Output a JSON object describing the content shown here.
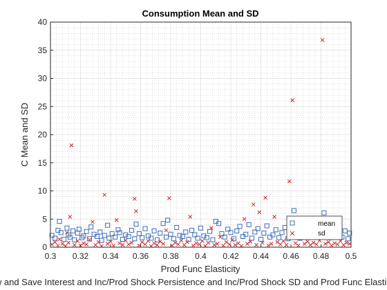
{
  "chart_data": {
    "type": "scatter",
    "title": "Consumption Mean and SD",
    "xlabel": "Prod Func Elasticity",
    "ylabel": "C Mean and SD",
    "bottom_caption": "Borrow and Save Interest and Inc/Prod Shock Persistence and Inc/Prod Shock SD and Prod Func Elasticity",
    "xlim": [
      0.3,
      0.5
    ],
    "ylim": [
      0,
      40
    ],
    "x_ticks": [
      "0.3",
      "0.32",
      "0.34",
      "0.36",
      "0.38",
      "0.4",
      "0.42",
      "0.44",
      "0.46",
      "0.48",
      "0.5"
    ],
    "y_ticks": [
      "0",
      "5",
      "10",
      "15",
      "20",
      "25",
      "30",
      "35",
      "40"
    ],
    "grid": true,
    "minor_grid": true,
    "legend_position": "bottom-right",
    "series": [
      {
        "name": "mean",
        "marker": "square",
        "color": "#3d6db5",
        "points": [
          [
            0.301,
            2.1
          ],
          [
            0.303,
            1.6
          ],
          [
            0.305,
            3.0
          ],
          [
            0.306,
            4.6
          ],
          [
            0.307,
            2.6
          ],
          [
            0.309,
            1.4
          ],
          [
            0.311,
            3.4
          ],
          [
            0.312,
            2.2
          ],
          [
            0.313,
            1.8
          ],
          [
            0.315,
            2.9
          ],
          [
            0.316,
            1.3
          ],
          [
            0.318,
            2.5
          ],
          [
            0.319,
            3.2
          ],
          [
            0.321,
            1.7
          ],
          [
            0.322,
            2.0
          ],
          [
            0.324,
            2.8
          ],
          [
            0.326,
            1.5
          ],
          [
            0.327,
            3.6
          ],
          [
            0.329,
            2.3
          ],
          [
            0.331,
            1.9
          ],
          [
            0.333,
            2.7
          ],
          [
            0.334,
            1.2
          ],
          [
            0.336,
            2.1
          ],
          [
            0.338,
            3.9
          ],
          [
            0.339,
            1.6
          ],
          [
            0.341,
            2.4
          ],
          [
            0.343,
            1.8
          ],
          [
            0.345,
            3.1
          ],
          [
            0.346,
            2.6
          ],
          [
            0.348,
            1.4
          ],
          [
            0.35,
            2.2
          ],
          [
            0.352,
            1.9
          ],
          [
            0.354,
            3.0
          ],
          [
            0.356,
            1.5
          ],
          [
            0.357,
            4.1
          ],
          [
            0.359,
            2.4
          ],
          [
            0.361,
            1.7
          ],
          [
            0.363,
            3.3
          ],
          [
            0.365,
            2.0
          ],
          [
            0.367,
            1.6
          ],
          [
            0.369,
            2.9
          ],
          [
            0.371,
            1.3
          ],
          [
            0.373,
            2.5
          ],
          [
            0.375,
            4.2
          ],
          [
            0.377,
            1.8
          ],
          [
            0.378,
            4.8
          ],
          [
            0.38,
            2.3
          ],
          [
            0.382,
            1.5
          ],
          [
            0.384,
            3.5
          ],
          [
            0.386,
            2.1
          ],
          [
            0.388,
            1.9
          ],
          [
            0.39,
            2.7
          ],
          [
            0.392,
            1.4
          ],
          [
            0.394,
            3.0
          ],
          [
            0.396,
            2.2
          ],
          [
            0.398,
            1.6
          ],
          [
            0.4,
            3.4
          ],
          [
            0.402,
            2.0
          ],
          [
            0.404,
            1.7
          ],
          [
            0.406,
            2.8
          ],
          [
            0.408,
            1.3
          ],
          [
            0.41,
            4.6
          ],
          [
            0.412,
            4.2
          ],
          [
            0.414,
            2.4
          ],
          [
            0.416,
            1.8
          ],
          [
            0.418,
            3.2
          ],
          [
            0.42,
            2.6
          ],
          [
            0.422,
            1.5
          ],
          [
            0.424,
            2.9
          ],
          [
            0.426,
            3.7
          ],
          [
            0.428,
            1.9
          ],
          [
            0.43,
            2.3
          ],
          [
            0.432,
            4.0
          ],
          [
            0.434,
            1.6
          ],
          [
            0.436,
            2.7
          ],
          [
            0.438,
            3.3
          ],
          [
            0.44,
            1.4
          ],
          [
            0.442,
            2.5
          ],
          [
            0.444,
            3.8
          ],
          [
            0.446,
            1.8
          ],
          [
            0.448,
            2.2
          ],
          [
            0.45,
            3.1
          ],
          [
            0.452,
            1.7
          ],
          [
            0.454,
            2.6
          ],
          [
            0.456,
            3.5
          ],
          [
            0.458,
            1.5
          ],
          [
            0.46,
            4.4
          ],
          [
            0.462,
            6.5
          ],
          [
            0.464,
            2.9
          ],
          [
            0.466,
            1.6
          ],
          [
            0.468,
            3.6
          ],
          [
            0.47,
            2.0
          ],
          [
            0.472,
            4.1
          ],
          [
            0.474,
            1.9
          ],
          [
            0.476,
            3.0
          ],
          [
            0.478,
            2.4
          ],
          [
            0.48,
            4.5
          ],
          [
            0.482,
            6.1
          ],
          [
            0.484,
            2.8
          ],
          [
            0.486,
            1.7
          ],
          [
            0.488,
            3.3
          ],
          [
            0.49,
            2.2
          ],
          [
            0.492,
            4.0
          ],
          [
            0.494,
            1.8
          ],
          [
            0.496,
            2.9
          ],
          [
            0.498,
            1.5
          ],
          [
            0.499,
            2.5
          ]
        ]
      },
      {
        "name": "sd",
        "marker": "x",
        "color": "#cc2a2a",
        "points": [
          [
            0.301,
            0.5
          ],
          [
            0.303,
            0.9
          ],
          [
            0.305,
            0.3
          ],
          [
            0.306,
            1.4
          ],
          [
            0.308,
            0.6
          ],
          [
            0.31,
            0.2
          ],
          [
            0.311,
            2.6
          ],
          [
            0.312,
            0.8
          ],
          [
            0.313,
            5.4
          ],
          [
            0.314,
            18.1
          ],
          [
            0.316,
            0.4
          ],
          [
            0.318,
            1.1
          ],
          [
            0.32,
            0.3
          ],
          [
            0.322,
            0.7
          ],
          [
            0.324,
            0.5
          ],
          [
            0.326,
            1.3
          ],
          [
            0.328,
            4.5
          ],
          [
            0.33,
            0.4
          ],
          [
            0.332,
            0.9
          ],
          [
            0.334,
            0.2
          ],
          [
            0.336,
            9.3
          ],
          [
            0.338,
            0.6
          ],
          [
            0.34,
            1.0
          ],
          [
            0.342,
            0.3
          ],
          [
            0.344,
            4.8
          ],
          [
            0.346,
            0.7
          ],
          [
            0.348,
            0.4
          ],
          [
            0.35,
            1.2
          ],
          [
            0.352,
            0.5
          ],
          [
            0.354,
            0.8
          ],
          [
            0.356,
            8.6
          ],
          [
            0.357,
            6.4
          ],
          [
            0.359,
            0.3
          ],
          [
            0.361,
            0.9
          ],
          [
            0.363,
            0.5
          ],
          [
            0.365,
            1.1
          ],
          [
            0.367,
            0.2
          ],
          [
            0.369,
            0.7
          ],
          [
            0.371,
            0.4
          ],
          [
            0.373,
            1.0
          ],
          [
            0.375,
            0.6
          ],
          [
            0.377,
            3.0
          ],
          [
            0.379,
            8.7
          ],
          [
            0.381,
            0.3
          ],
          [
            0.383,
            0.8
          ],
          [
            0.385,
            0.5
          ],
          [
            0.387,
            1.2
          ],
          [
            0.389,
            0.4
          ],
          [
            0.391,
            0.9
          ],
          [
            0.393,
            5.4
          ],
          [
            0.395,
            0.3
          ],
          [
            0.397,
            0.7
          ],
          [
            0.399,
            0.5
          ],
          [
            0.401,
            1.1
          ],
          [
            0.403,
            0.2
          ],
          [
            0.405,
            0.8
          ],
          [
            0.407,
            3.4
          ],
          [
            0.409,
            0.4
          ],
          [
            0.411,
            0.6
          ],
          [
            0.413,
            1.8
          ],
          [
            0.415,
            0.3
          ],
          [
            0.417,
            0.9
          ],
          [
            0.419,
            0.5
          ],
          [
            0.421,
            1.3
          ],
          [
            0.423,
            0.4
          ],
          [
            0.425,
            0.7
          ],
          [
            0.427,
            0.2
          ],
          [
            0.429,
            5.0
          ],
          [
            0.431,
            0.6
          ],
          [
            0.433,
            1.0
          ],
          [
            0.435,
            7.6
          ],
          [
            0.437,
            0.4
          ],
          [
            0.439,
            6.2
          ],
          [
            0.441,
            0.8
          ],
          [
            0.443,
            8.8
          ],
          [
            0.445,
            0.3
          ],
          [
            0.447,
            0.6
          ],
          [
            0.449,
            5.4
          ],
          [
            0.451,
            0.9
          ],
          [
            0.453,
            0.5
          ],
          [
            0.455,
            1.1
          ],
          [
            0.457,
            0.4
          ],
          [
            0.459,
            11.7
          ],
          [
            0.461,
            26.1
          ],
          [
            0.463,
            0.7
          ],
          [
            0.465,
            0.3
          ],
          [
            0.467,
            3.0
          ],
          [
            0.469,
            0.6
          ],
          [
            0.471,
            1.0
          ],
          [
            0.473,
            0.4
          ],
          [
            0.475,
            0.8
          ],
          [
            0.477,
            0.5
          ],
          [
            0.479,
            1.2
          ],
          [
            0.481,
            36.8
          ],
          [
            0.483,
            0.6
          ],
          [
            0.485,
            0.9
          ],
          [
            0.487,
            0.3
          ],
          [
            0.489,
            0.7
          ],
          [
            0.491,
            0.5
          ],
          [
            0.493,
            1.1
          ],
          [
            0.495,
            0.4
          ],
          [
            0.497,
            0.8
          ],
          [
            0.499,
            0.6
          ]
        ]
      }
    ]
  }
}
